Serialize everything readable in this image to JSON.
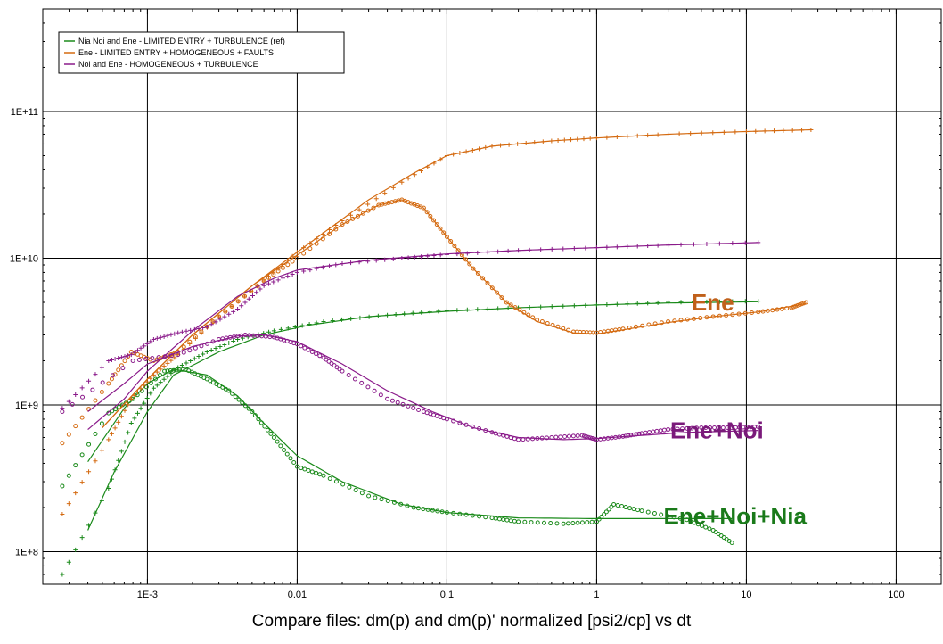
{
  "chart_data": {
    "type": "scatter",
    "title": "Compare files: dm(p) and dm(p)' normalized [psi2/cp] vs dt",
    "xlabel": "dt",
    "ylabel": "dm(p) and dm(p)' normalized [psi2/cp]",
    "x_scale": "log",
    "y_scale": "log",
    "xlim": [
      0.0002,
      200
    ],
    "ylim": [
      60000000,
      500000000000.0
    ],
    "x_ticks": [
      {
        "value": 0.001,
        "label": "1E-3"
      },
      {
        "value": 0.01,
        "label": "0.01"
      },
      {
        "value": 0.1,
        "label": "0.1"
      },
      {
        "value": 1,
        "label": "1"
      },
      {
        "value": 10,
        "label": "10"
      },
      {
        "value": 100,
        "label": "100"
      }
    ],
    "y_ticks": [
      {
        "value": 100000000,
        "label": "1E+8"
      },
      {
        "value": 1000000000,
        "label": "1E+9"
      },
      {
        "value": 10000000000,
        "label": "1E+10"
      },
      {
        "value": 100000000000,
        "label": "1E+11"
      }
    ],
    "grid": true,
    "legend_position": "top-left",
    "legend": [
      {
        "label": "Nia Noi and Ene - LIMITED ENTRY + TURBULENCE (ref)",
        "color": "#1a8a1a"
      },
      {
        "label": "Ene - LIMITED ENTRY + HOMOGENEOUS + FAULTS",
        "color": "#d46a10"
      },
      {
        "label": "Noi and Ene - HOMOGENEOUS + TURBULENCE",
        "color": "#8a1a8a"
      }
    ],
    "annotations": [
      {
        "text": "Ene",
        "x": 4.3,
        "y": 5000000000,
        "color": "#c0601a"
      },
      {
        "text": "Ene+Noi",
        "x": 3.1,
        "y": 670000000,
        "color": "#7a1a7a"
      },
      {
        "text": "Ene+Noi+Nia",
        "x": 2.8,
        "y": 175000000,
        "color": "#1a7a1a"
      }
    ],
    "series": [
      {
        "name": "Nia Noi and Ene - LIMITED ENTRY + TURBULENCE (ref)",
        "color": "#1a8a1a",
        "pressure_points": [
          [
            0.00027,
            70000000
          ],
          [
            0.00055,
            270000000
          ],
          [
            0.00078,
            750000000
          ],
          [
            0.0011,
            1300000000
          ],
          [
            0.0016,
            1800000000
          ],
          [
            0.0025,
            2300000000
          ],
          [
            0.004,
            2800000000
          ],
          [
            0.007,
            3200000000
          ],
          [
            0.015,
            3700000000
          ],
          [
            0.04,
            4100000000
          ],
          [
            0.1,
            4400000000
          ],
          [
            0.3,
            4600000000
          ],
          [
            1,
            4800000000
          ],
          [
            3,
            5000000000
          ],
          [
            12,
            5100000000
          ]
        ],
        "derivative_points": [
          [
            0.00027,
            280000000
          ],
          [
            0.00055,
            880000000
          ],
          [
            0.0008,
            1100000000
          ],
          [
            0.0013,
            1700000000
          ],
          [
            0.0018,
            1750000000
          ],
          [
            0.0025,
            1500000000
          ],
          [
            0.0035,
            1250000000
          ],
          [
            0.005,
            900000000
          ],
          [
            0.007,
            600000000
          ],
          [
            0.01,
            380000000
          ],
          [
            0.015,
            330000000
          ],
          [
            0.03,
            240000000
          ],
          [
            0.06,
            200000000
          ],
          [
            0.1,
            185000000
          ],
          [
            0.2,
            170000000
          ],
          [
            0.3,
            160000000
          ],
          [
            0.6,
            155000000
          ],
          [
            1,
            160000000
          ],
          [
            1.3,
            210000000
          ],
          [
            2,
            190000000
          ],
          [
            4,
            165000000
          ],
          [
            6,
            140000000
          ],
          [
            8,
            115000000
          ]
        ],
        "model_pressure": [
          [
            0.0004,
            140000000
          ],
          [
            0.0006,
            350000000
          ],
          [
            0.001,
            900000000
          ],
          [
            0.0015,
            1600000000
          ],
          [
            0.003,
            2300000000
          ],
          [
            0.006,
            3000000000
          ],
          [
            0.012,
            3500000000
          ],
          [
            0.03,
            4000000000
          ],
          [
            0.1,
            4350000000
          ],
          [
            0.3,
            4600000000
          ],
          [
            1,
            4800000000
          ],
          [
            3,
            4950000000
          ],
          [
            12,
            5050000000
          ]
        ],
        "model_derivative": [
          [
            0.0004,
            410000000
          ],
          [
            0.0007,
            950000000
          ],
          [
            0.001,
            1400000000
          ],
          [
            0.0015,
            1750000000
          ],
          [
            0.0025,
            1600000000
          ],
          [
            0.004,
            1150000000
          ],
          [
            0.006,
            750000000
          ],
          [
            0.01,
            450000000
          ],
          [
            0.02,
            300000000
          ],
          [
            0.05,
            210000000
          ],
          [
            0.1,
            185000000
          ],
          [
            0.3,
            170000000
          ],
          [
            1,
            168000000
          ],
          [
            3,
            168000000
          ],
          [
            8,
            168000000
          ]
        ]
      },
      {
        "name": "Ene - LIMITED ENTRY + HOMOGENEOUS + FAULTS",
        "color": "#d46a10",
        "pressure_points": [
          [
            0.00027,
            180000000
          ],
          [
            0.00055,
            580000000
          ],
          [
            0.00078,
            1100000000
          ],
          [
            0.0011,
            1600000000
          ],
          [
            0.0016,
            2200000000
          ],
          [
            0.003,
            4000000000
          ],
          [
            0.006,
            7000000000
          ],
          [
            0.01,
            11000000000
          ],
          [
            0.02,
            18000000000
          ],
          [
            0.05,
            33000000000
          ],
          [
            0.1,
            50000000000
          ],
          [
            0.2,
            58000000000
          ],
          [
            0.5,
            63000000000
          ],
          [
            1,
            66000000000
          ],
          [
            3,
            70000000000
          ],
          [
            10,
            73000000000
          ],
          [
            27,
            75000000000
          ]
        ],
        "derivative_points": [
          [
            0.00027,
            550000000
          ],
          [
            0.00055,
            1400000000
          ],
          [
            0.00078,
            2300000000
          ],
          [
            0.0011,
            2000000000
          ],
          [
            0.0016,
            2300000000
          ],
          [
            0.003,
            4000000000
          ],
          [
            0.006,
            7000000000
          ],
          [
            0.01,
            10000000000
          ],
          [
            0.02,
            17000000000
          ],
          [
            0.035,
            23000000000
          ],
          [
            0.05,
            25000000000
          ],
          [
            0.07,
            22000000000
          ],
          [
            0.1,
            14000000000
          ],
          [
            0.15,
            8500000000
          ],
          [
            0.25,
            5000000000
          ],
          [
            0.4,
            3800000000
          ],
          [
            0.7,
            3150000000
          ],
          [
            1,
            3100000000
          ],
          [
            1.5,
            3300000000
          ],
          [
            3,
            3700000000
          ],
          [
            6,
            4000000000
          ],
          [
            12,
            4300000000
          ],
          [
            20,
            4600000000
          ],
          [
            25,
            5000000000
          ]
        ],
        "model_pressure": [
          [
            0.0005,
            700000000
          ],
          [
            0.001,
            1500000000
          ],
          [
            0.002,
            3000000000
          ],
          [
            0.005,
            6500000000
          ],
          [
            0.01,
            11000000000
          ],
          [
            0.03,
            25000000000
          ],
          [
            0.06,
            38000000000
          ],
          [
            0.1,
            50000000000
          ],
          [
            0.2,
            58000000000
          ],
          [
            0.5,
            63000000000
          ],
          [
            1,
            66000000000
          ],
          [
            3,
            70000000000
          ],
          [
            10,
            73000000000
          ],
          [
            27,
            75000000000
          ]
        ],
        "model_derivative": [
          [
            0.0005,
            700000000
          ],
          [
            0.001,
            1500000000
          ],
          [
            0.002,
            3000000000
          ],
          [
            0.005,
            6500000000
          ],
          [
            0.01,
            10500000000
          ],
          [
            0.02,
            17000000000
          ],
          [
            0.035,
            23000000000
          ],
          [
            0.05,
            25000000000
          ],
          [
            0.07,
            22000000000
          ],
          [
            0.1,
            14000000000
          ],
          [
            0.15,
            8500000000
          ],
          [
            0.25,
            5000000000
          ],
          [
            0.4,
            3700000000
          ],
          [
            0.7,
            3100000000
          ],
          [
            1,
            3050000000
          ],
          [
            1.5,
            3250000000
          ],
          [
            3,
            3650000000
          ],
          [
            6,
            4000000000
          ],
          [
            12,
            4300000000
          ],
          [
            25,
            4900000000
          ]
        ]
      },
      {
        "name": "Noi and Ene - HOMOGENEOUS + TURBULENCE",
        "color": "#8a1a8a",
        "pressure_points": [
          [
            0.00027,
            950000000
          ],
          [
            0.00055,
            2000000000
          ],
          [
            0.00078,
            2200000000
          ],
          [
            0.0011,
            2800000000
          ],
          [
            0.0016,
            3100000000
          ],
          [
            0.0025,
            3400000000
          ],
          [
            0.004,
            4500000000
          ],
          [
            0.006,
            6500000000
          ],
          [
            0.01,
            8000000000
          ],
          [
            0.02,
            9200000000
          ],
          [
            0.05,
            10000000000
          ],
          [
            0.1,
            10600000000
          ],
          [
            0.3,
            11300000000
          ],
          [
            1,
            11800000000
          ],
          [
            3,
            12300000000
          ],
          [
            12,
            12800000000
          ]
        ],
        "derivative_points": [
          [
            0.00027,
            900000000
          ],
          [
            0.0008,
            2000000000
          ],
          [
            0.0016,
            2200000000
          ],
          [
            0.003,
            2800000000
          ],
          [
            0.0045,
            3000000000
          ],
          [
            0.007,
            2900000000
          ],
          [
            0.01,
            2600000000
          ],
          [
            0.015,
            2100000000
          ],
          [
            0.02,
            1700000000
          ],
          [
            0.04,
            1100000000
          ],
          [
            0.07,
            900000000
          ],
          [
            0.1,
            800000000
          ],
          [
            0.2,
            650000000
          ],
          [
            0.3,
            580000000
          ],
          [
            0.5,
            600000000
          ],
          [
            0.8,
            620000000
          ],
          [
            1,
            580000000
          ],
          [
            1.5,
            610000000
          ],
          [
            2,
            640000000
          ],
          [
            3,
            680000000
          ],
          [
            5,
            700000000
          ],
          [
            8,
            700000000
          ],
          [
            12,
            710000000
          ]
        ],
        "model_pressure": [
          [
            0.0004,
            680000000
          ],
          [
            0.0007,
            1100000000
          ],
          [
            0.001,
            1700000000
          ],
          [
            0.002,
            3200000000
          ],
          [
            0.004,
            5500000000
          ],
          [
            0.007,
            7300000000
          ],
          [
            0.01,
            8300000000
          ],
          [
            0.03,
            9700000000
          ],
          [
            0.1,
            10700000000
          ],
          [
            0.3,
            11300000000
          ],
          [
            1,
            11800000000
          ],
          [
            3,
            12300000000
          ],
          [
            12,
            12800000000
          ]
        ],
        "model_derivative": [
          [
            0.0004,
            900000000
          ],
          [
            0.0007,
            1400000000
          ],
          [
            0.001,
            1900000000
          ],
          [
            0.002,
            2500000000
          ],
          [
            0.004,
            2950000000
          ],
          [
            0.006,
            3000000000
          ],
          [
            0.01,
            2700000000
          ],
          [
            0.02,
            1900000000
          ],
          [
            0.04,
            1250000000
          ],
          [
            0.08,
            900000000
          ],
          [
            0.15,
            700000000
          ],
          [
            0.3,
            600000000
          ],
          [
            0.6,
            580000000
          ],
          [
            1,
            590000000
          ],
          [
            2,
            620000000
          ],
          [
            4,
            650000000
          ],
          [
            12,
            670000000
          ]
        ]
      }
    ]
  }
}
